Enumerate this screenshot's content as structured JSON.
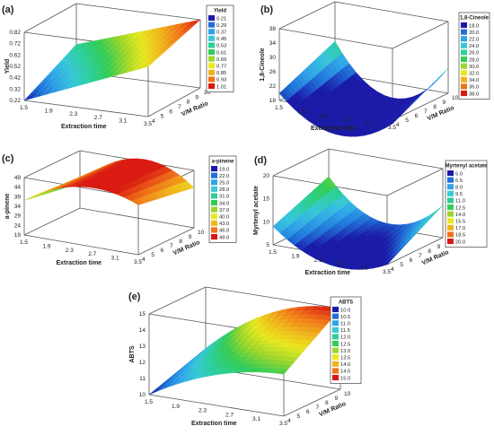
{
  "chart_data": [
    {
      "type": "surface",
      "panel_label": "(a)",
      "xlabel": "Extraction time",
      "ylabel": "V/M Ratio",
      "zlabel": "Yield",
      "x_ticks": [
        "1.5",
        "1.9",
        "2.3",
        "2.7",
        "3.1",
        "3.5"
      ],
      "y_ticks": [
        "4",
        "5",
        "6",
        "7",
        "8",
        "9",
        "10"
      ],
      "z_ticks": [
        "0.22",
        "0.32",
        "0.42",
        "0.52",
        "0.62",
        "0.72",
        "0.82"
      ],
      "xlim": [
        1.5,
        3.5
      ],
      "ylim": [
        4,
        10
      ],
      "zlim": [
        0.22,
        0.82
      ],
      "legend_title": "Yield",
      "legend_levels": [
        "0.21",
        "0.29",
        "0.37",
        "0.45",
        "0.53",
        "0.61",
        "0.69",
        "0.77",
        "0.85",
        "0.93",
        "1.01"
      ],
      "legend_colors": [
        "#1a1aa8",
        "#1f6fd6",
        "#2fa3e8",
        "#38c7d8",
        "#2ccf98",
        "#33cc55",
        "#9bd62c",
        "#e8e820",
        "#f0b41c",
        "#f07318",
        "#d91a12"
      ],
      "surface_corners_z": {
        "x_min_y_min": 0.22,
        "x_max_y_min": 0.66,
        "x_min_y_max": 0.46,
        "x_max_y_max": 0.82
      },
      "surface_curvature": 0.0
    },
    {
      "type": "surface",
      "panel_label": "(b)",
      "xlabel": "Extraction time",
      "ylabel": "V/M Ratio",
      "zlabel": "1,8-Cineole",
      "x_ticks": [
        "1.5",
        "1.9",
        "2.3",
        "2.7",
        "3.1",
        "3.5"
      ],
      "y_ticks": [
        "4",
        "5",
        "6",
        "7",
        "8",
        "9",
        "10"
      ],
      "z_ticks": [
        "18",
        "22",
        "26",
        "30",
        "34",
        "38"
      ],
      "xlim": [
        1.5,
        3.5
      ],
      "ylim": [
        4,
        10
      ],
      "zlim": [
        18,
        38
      ],
      "legend_title": "1,8-Cineole",
      "legend_levels": [
        "18.0",
        "20.0",
        "22.0",
        "24.0",
        "26.0",
        "28.0",
        "30.0",
        "32.0",
        "34.0",
        "36.0",
        "38.0"
      ],
      "legend_colors": [
        "#1a1aa8",
        "#1f6fd6",
        "#2fa3e8",
        "#38c7d8",
        "#2ccf98",
        "#33cc55",
        "#9bd62c",
        "#e8e820",
        "#f0b41c",
        "#f07318",
        "#d91a12"
      ],
      "surface_corners_z": {
        "x_min_y_min": 20,
        "x_max_y_min": 17,
        "x_min_y_max": 27,
        "x_max_y_max": 25
      },
      "surface_curvature": -12.0
    },
    {
      "type": "surface",
      "panel_label": "(c)",
      "xlabel": "Extraction time",
      "ylabel": "V/M Ratio",
      "zlabel": "a-pinene",
      "x_ticks": [
        "1.5",
        "1.9",
        "2.3",
        "2.7",
        "3.1",
        "3.5"
      ],
      "y_ticks": [
        "4",
        "5",
        "6",
        "7",
        "8",
        "9",
        "10"
      ],
      "z_ticks": [
        "19",
        "24",
        "29",
        "34",
        "39",
        "44",
        "49"
      ],
      "xlim": [
        1.5,
        3.5
      ],
      "ylim": [
        4,
        10
      ],
      "zlim": [
        19,
        49
      ],
      "legend_title": "a-pinene",
      "legend_levels": [
        "19.0",
        "22.0",
        "25.0",
        "28.0",
        "31.0",
        "34.0",
        "37.0",
        "40.0",
        "43.0",
        "46.0",
        "49.0"
      ],
      "legend_colors": [
        "#1a1aa8",
        "#1f6fd6",
        "#2fa3e8",
        "#38c7d8",
        "#2ccf98",
        "#33cc55",
        "#9bd62c",
        "#e8e820",
        "#f0b41c",
        "#f07318",
        "#d91a12"
      ],
      "surface_corners_z": {
        "x_min_y_min": 37,
        "x_max_y_min": 45,
        "x_min_y_max": 32,
        "x_max_y_max": 40
      },
      "surface_curvature": 14.0
    },
    {
      "type": "surface",
      "panel_label": "(d)",
      "xlabel": "Extraction time",
      "ylabel": "V/M Ratio",
      "zlabel": "Myrtenyl acetate",
      "x_ticks": [
        "1.5",
        "1.9",
        "2.3",
        "2.7",
        "3.1",
        "3.5"
      ],
      "y_ticks": [
        "4",
        "5",
        "6",
        "7",
        "8",
        "9",
        "10"
      ],
      "z_ticks": [
        "5",
        "10",
        "15",
        "20"
      ],
      "xlim": [
        1.5,
        3.5
      ],
      "ylim": [
        4,
        10
      ],
      "zlim": [
        5,
        20
      ],
      "legend_title": "Myrtenyl acetate",
      "legend_levels": [
        "5.0",
        "6.5",
        "8.0",
        "9.5",
        "11.0",
        "12.5",
        "14.0",
        "15.5",
        "17.0",
        "18.5",
        "20.0"
      ],
      "legend_colors": [
        "#1a1aa8",
        "#1f6fd6",
        "#2fa3e8",
        "#38c7d8",
        "#2ccf98",
        "#33cc55",
        "#9bd62c",
        "#e8e820",
        "#f0b41c",
        "#f07318",
        "#d91a12"
      ],
      "surface_corners_z": {
        "x_min_y_min": 9,
        "x_max_y_min": 5,
        "x_min_y_max": 14,
        "x_max_y_max": 12
      },
      "surface_curvature": -7.0
    },
    {
      "type": "surface",
      "panel_label": "(e)",
      "xlabel": "Extraction time",
      "ylabel": "V/M Ratio",
      "zlabel": "ABTS",
      "x_ticks": [
        "1.5",
        "1.9",
        "2.3",
        "2.7",
        "3.1",
        "3.5"
      ],
      "y_ticks": [
        "4",
        "5",
        "6",
        "7",
        "8",
        "9",
        "10"
      ],
      "z_ticks": [
        "10",
        "11",
        "12",
        "13",
        "14",
        "15"
      ],
      "xlim": [
        1.5,
        3.5
      ],
      "ylim": [
        4,
        10
      ],
      "zlim": [
        10,
        15
      ],
      "legend_title": "ABTS",
      "legend_levels": [
        "10.0",
        "10.5",
        "11.0",
        "11.5",
        "12.0",
        "12.5",
        "13.0",
        "13.5",
        "14.0",
        "14.5",
        "15.0"
      ],
      "legend_colors": [
        "#1a1aa8",
        "#1f6fd6",
        "#2fa3e8",
        "#38c7d8",
        "#2ccf98",
        "#33cc55",
        "#9bd62c",
        "#e8e820",
        "#f0b41c",
        "#f07318",
        "#d91a12"
      ],
      "surface_corners_z": {
        "x_min_y_min": 10.0,
        "x_max_y_min": 12.6,
        "x_min_y_max": 11.2,
        "x_max_y_max": 15.0
      },
      "surface_curvature": 1.0
    }
  ]
}
